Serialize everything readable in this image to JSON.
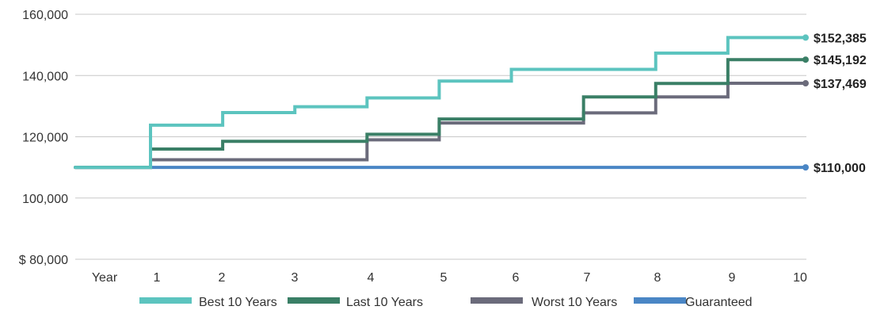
{
  "chart_data": {
    "type": "line",
    "step": true,
    "x_prefix_label": "Year",
    "x": [
      0,
      1,
      2,
      3,
      4,
      5,
      6,
      7,
      8,
      9,
      10
    ],
    "x_tick_labels": [
      "1",
      "2",
      "3",
      "4",
      "5",
      "6",
      "7",
      "8",
      "9",
      "10"
    ],
    "ylim": [
      80000,
      160000
    ],
    "y_ticks": [
      80000,
      100000,
      120000,
      140000,
      160000
    ],
    "y_tick_labels": [
      "$ 80,000",
      "100,000",
      "120,000",
      "140,000",
      "160,000"
    ],
    "grid": false,
    "legend_position": "bottom",
    "series": [
      {
        "name": "Guaranteed",
        "color": "#4a86c5",
        "values": [
          110000,
          110000,
          110000,
          110000,
          110000,
          110000,
          110000,
          110000,
          110000,
          110000,
          110000
        ],
        "end_label": "$110,000"
      },
      {
        "name": "Worst 10 Years",
        "color": "#6b6b7b",
        "values": [
          110000,
          112500,
          112500,
          112500,
          119000,
          124500,
          124500,
          127800,
          133000,
          137469,
          137469
        ],
        "end_label": "$137,469"
      },
      {
        "name": "Last 10 Years",
        "color": "#3a7f66",
        "values": [
          110000,
          116000,
          118500,
          118500,
          120800,
          125800,
          125800,
          133000,
          137400,
          145192,
          145192
        ],
        "end_label": "$145,192"
      },
      {
        "name": "Best 10 Years",
        "color": "#5cc4bf",
        "values": [
          110000,
          123800,
          127900,
          129800,
          132700,
          138200,
          142000,
          142000,
          147300,
          152385,
          152385
        ],
        "end_label": "$152,385"
      }
    ],
    "legend_order": [
      "Best 10 Years",
      "Last 10 Years",
      "Worst 10 Years",
      "Guaranteed"
    ]
  }
}
